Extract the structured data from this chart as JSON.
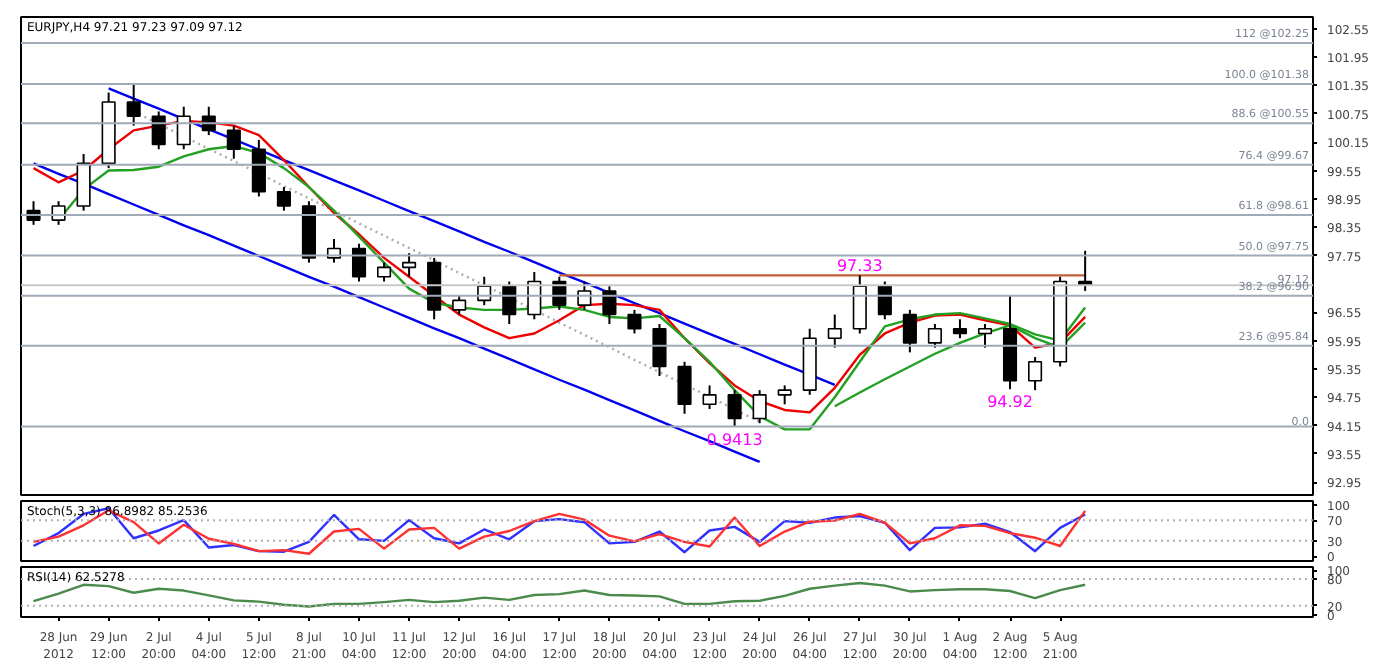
{
  "chart_data": [
    {
      "type": "candlestick",
      "title": "EURJPY,H4  97.21 97.23 97.09 97.12",
      "tick_labels": "y",
      "ylim": [
        92.68,
        102.8
      ],
      "yticks": [
        102.55,
        101.95,
        101.35,
        100.75,
        100.15,
        99.55,
        98.95,
        98.35,
        97.75,
        96.55,
        95.95,
        95.35,
        94.75,
        94.15,
        93.55,
        92.95
      ],
      "categories": [
        null,
        null,
        null,
        null,
        null,
        null,
        null,
        null,
        null,
        null,
        null,
        null,
        null,
        null,
        null,
        null,
        null,
        null,
        null,
        null,
        null,
        null,
        null,
        null,
        null,
        null,
        null,
        null,
        null,
        null,
        null,
        null,
        null,
        null,
        null,
        null,
        null,
        null,
        null,
        null,
        null,
        null,
        null
      ],
      "ohlc": [
        [
          98.7,
          98.9,
          98.4,
          98.5
        ],
        [
          98.5,
          98.9,
          98.4,
          98.8
        ],
        [
          98.8,
          99.9,
          98.7,
          99.7
        ],
        [
          99.7,
          101.2,
          99.6,
          101.0
        ],
        [
          101.0,
          101.4,
          100.5,
          100.7
        ],
        [
          100.7,
          100.8,
          100.0,
          100.1
        ],
        [
          100.1,
          100.9,
          100.0,
          100.7
        ],
        [
          100.7,
          100.9,
          100.3,
          100.4
        ],
        [
          100.4,
          100.5,
          99.8,
          100.0
        ],
        [
          100.0,
          100.2,
          99.0,
          99.1
        ],
        [
          99.1,
          99.2,
          98.7,
          98.8
        ],
        [
          98.8,
          98.9,
          97.6,
          97.7
        ],
        [
          97.7,
          98.1,
          97.6,
          97.9
        ],
        [
          97.9,
          98.0,
          97.2,
          97.3
        ],
        [
          97.3,
          97.6,
          97.2,
          97.5
        ],
        [
          97.5,
          97.8,
          97.3,
          97.6
        ],
        [
          97.6,
          97.7,
          96.4,
          96.6
        ],
        [
          96.6,
          96.9,
          96.5,
          96.8
        ],
        [
          96.8,
          97.3,
          96.7,
          97.1
        ],
        [
          97.1,
          97.2,
          96.3,
          96.5
        ],
        [
          96.5,
          97.4,
          96.4,
          97.2
        ],
        [
          97.2,
          97.3,
          96.6,
          96.7
        ],
        [
          96.7,
          97.2,
          96.6,
          97.0
        ],
        [
          97.0,
          97.1,
          96.3,
          96.5
        ],
        [
          96.5,
          96.6,
          96.1,
          96.2
        ],
        [
          96.2,
          96.3,
          95.2,
          95.4
        ],
        [
          95.4,
          95.5,
          94.4,
          94.6
        ],
        [
          94.6,
          95.0,
          94.5,
          94.8
        ],
        [
          94.8,
          94.9,
          94.13,
          94.3
        ],
        [
          94.3,
          94.9,
          94.2,
          94.8
        ],
        [
          94.8,
          95.0,
          94.6,
          94.9
        ],
        [
          94.9,
          96.2,
          94.8,
          96.0
        ],
        [
          96.0,
          96.5,
          95.8,
          96.2
        ],
        [
          96.2,
          97.33,
          96.1,
          97.1
        ],
        [
          97.1,
          97.2,
          96.4,
          96.5
        ],
        [
          96.5,
          96.6,
          95.7,
          95.9
        ],
        [
          95.9,
          96.3,
          95.8,
          96.2
        ],
        [
          96.2,
          96.4,
          96.0,
          96.1
        ],
        [
          96.1,
          96.3,
          95.8,
          96.2
        ],
        [
          96.2,
          96.9,
          94.92,
          95.1
        ],
        [
          95.1,
          95.6,
          94.9,
          95.5
        ],
        [
          95.5,
          97.3,
          95.4,
          97.2
        ],
        [
          97.2,
          97.85,
          97.0,
          97.12
        ]
      ],
      "series": [
        {
          "type": "line",
          "color": "#0000ee",
          "values": [
            null,
            null,
            null,
            101.29,
            101.07,
            100.86,
            100.64,
            100.42,
            100.21,
            99.99,
            99.77,
            99.56,
            99.34,
            99.13,
            98.91,
            98.69,
            98.48,
            98.26,
            98.04,
            97.83,
            97.61,
            97.39,
            97.18,
            96.96,
            96.74,
            96.53,
            96.31,
            96.09,
            95.88,
            95.66,
            95.44,
            95.23,
            95.01,
            null,
            null,
            null,
            null,
            null,
            null,
            null,
            null,
            null,
            null
          ]
        },
        {
          "type": "line",
          "color": "#0000ee",
          "values": [
            99.7,
            99.48,
            99.27,
            99.05,
            98.83,
            98.61,
            98.39,
            98.18,
            97.96,
            97.74,
            97.52,
            97.3,
            97.09,
            96.87,
            96.65,
            96.43,
            96.21,
            96.0,
            95.78,
            95.56,
            95.34,
            95.12,
            94.91,
            94.69,
            94.47,
            94.25,
            94.03,
            93.82,
            93.6,
            93.38,
            null,
            null,
            null,
            null,
            null,
            null,
            null,
            null,
            null,
            null,
            null,
            null,
            null
          ]
        },
        {
          "type": "line",
          "color": "#aaaaaa",
          "line_style": "dotted",
          "values": [
            null,
            null,
            null,
            null,
            100.8,
            100.54,
            100.27,
            100.01,
            99.75,
            99.49,
            99.22,
            98.96,
            98.7,
            98.43,
            98.17,
            97.91,
            97.65,
            97.38,
            97.12,
            96.86,
            96.6,
            96.33,
            96.07,
            95.81,
            95.54,
            95.28,
            95.02,
            94.76,
            94.49,
            94.23,
            null,
            null,
            null,
            null,
            null,
            null,
            null,
            null,
            null,
            null,
            null,
            null,
            null
          ]
        },
        {
          "type": "line",
          "color": "#c0603a",
          "values": [
            null,
            null,
            null,
            null,
            null,
            null,
            null,
            null,
            null,
            null,
            null,
            null,
            null,
            null,
            null,
            null,
            null,
            null,
            null,
            null,
            null,
            97.33,
            97.33,
            97.33,
            97.33,
            97.33,
            97.33,
            97.33,
            97.33,
            97.33,
            97.33,
            97.33,
            97.33,
            97.33,
            97.33,
            97.33,
            97.33,
            97.33,
            97.33,
            97.33,
            97.33,
            97.33,
            97.33
          ]
        },
        {
          "type": "line",
          "color": "#ee0000",
          "values": [
            99.6,
            99.3,
            99.55,
            100.0,
            100.4,
            100.5,
            100.6,
            100.57,
            100.5,
            100.3,
            99.77,
            99.2,
            98.65,
            98.2,
            97.7,
            97.3,
            96.9,
            96.5,
            96.23,
            96.0,
            96.1,
            96.38,
            96.7,
            96.73,
            96.7,
            96.6,
            96.0,
            95.47,
            95.0,
            94.67,
            94.48,
            94.43,
            94.95,
            95.65,
            96.1,
            96.33,
            96.48,
            96.5,
            96.38,
            96.27,
            95.8,
            95.9,
            96.45
          ]
        },
        {
          "type": "line",
          "color": "#22a022",
          "values": [
            null,
            98.5,
            99.15,
            99.55,
            99.56,
            99.63,
            99.85,
            100.0,
            100.07,
            99.92,
            99.6,
            99.2,
            98.7,
            98.15,
            97.6,
            97.05,
            96.75,
            96.65,
            96.6,
            96.6,
            96.63,
            96.67,
            96.6,
            96.45,
            96.42,
            96.47,
            96.0,
            95.5,
            94.9,
            94.35,
            94.07,
            94.07,
            94.75,
            95.5,
            96.25,
            96.4,
            96.5,
            96.53,
            96.42,
            96.3,
            96.08,
            95.95,
            96.65
          ]
        },
        {
          "type": "line",
          "color": "#22a022",
          "values": [
            null,
            null,
            null,
            null,
            null,
            null,
            null,
            null,
            null,
            null,
            null,
            null,
            null,
            null,
            null,
            null,
            null,
            null,
            null,
            null,
            null,
            null,
            null,
            null,
            null,
            null,
            null,
            null,
            null,
            null,
            null,
            null,
            94.56,
            94.85,
            95.13,
            95.4,
            95.67,
            95.9,
            96.1,
            96.27,
            96.0,
            95.8,
            96.33
          ]
        }
      ],
      "ref_lines": [
        {
          "axis": "y",
          "value": 102.25,
          "label": "112 @102.25",
          "color": "#a0aab8"
        },
        {
          "axis": "y",
          "value": 101.38,
          "label": "100.0 @101.38",
          "color": "#a0aab8"
        },
        {
          "axis": "y",
          "value": 100.55,
          "label": "88.6 @100.55",
          "color": "#a0aab8"
        },
        {
          "axis": "y",
          "value": 99.67,
          "label": "76.4 @99.67",
          "color": "#a0aab8"
        },
        {
          "axis": "y",
          "value": 98.61,
          "label": "61.8 @98.61",
          "color": "#a0aab8"
        },
        {
          "axis": "y",
          "value": 97.75,
          "label": "50.0 @97.75",
          "color": "#a0aab8"
        },
        {
          "axis": "y",
          "value": 97.12,
          "label": "97.12",
          "color": "#c8c8c8"
        },
        {
          "axis": "y",
          "value": 96.9,
          "label": "38.2 @96.90",
          "color": "#a0aab8"
        },
        {
          "axis": "y",
          "value": 95.84,
          "label": "23.6 @95.84",
          "color": "#a0aab8"
        },
        {
          "axis": "y",
          "value": 94.13,
          "color": "#a0aab8"
        }
      ],
      "annotations": [
        {
          "text": "97.33",
          "y": 97.33
        },
        {
          "text": "94.92",
          "y": 94.92
        },
        {
          "text": "0.9413",
          "y": 94.13
        },
        "0.0"
      ]
    },
    {
      "type": "line",
      "title": "Stoch(5,3,3) 86.8982 85.2536",
      "tick_labels": "y",
      "ylim": [
        -9,
        107
      ],
      "yticks": [
        100,
        70,
        30,
        0
      ],
      "categories": [
        null,
        null,
        null,
        null,
        null,
        null,
        null,
        null,
        null,
        null,
        null,
        null,
        null,
        null,
        null,
        null,
        null,
        null,
        null,
        null,
        null,
        null,
        null,
        null,
        null,
        null,
        null,
        null,
        null,
        null,
        null,
        null,
        null,
        null,
        null,
        null,
        null,
        null,
        null,
        null,
        null,
        null,
        null
      ],
      "ref_lines": [
        {
          "axis": "y",
          "value": 70,
          "color": "#b0b0b0",
          "line_style": "dotted"
        },
        {
          "axis": "y",
          "value": 30,
          "color": "#b0b0b0",
          "line_style": "dotted"
        }
      ],
      "series": [
        {
          "color": "#3030ff",
          "values": [
            20,
            45,
            82,
            93,
            35,
            50,
            70,
            17,
            22,
            10,
            9,
            28,
            80,
            33,
            30,
            70,
            35,
            25,
            52,
            33,
            68,
            72,
            66,
            25,
            28,
            48,
            8,
            50,
            57,
            28,
            68,
            65,
            75,
            78,
            65,
            12,
            55,
            56,
            63,
            47,
            10,
            55,
            81
          ]
        },
        {
          "color": "#ff3030",
          "values": [
            28,
            38,
            60,
            89,
            66,
            25,
            61,
            34,
            24,
            10,
            12,
            5,
            48,
            53,
            15,
            52,
            55,
            15,
            38,
            49,
            68,
            82,
            71,
            40,
            29,
            43,
            28,
            19,
            75,
            20,
            48,
            67,
            69,
            82,
            65,
            25,
            35,
            60,
            59,
            45,
            36,
            20,
            88
          ]
        }
      ]
    },
    {
      "type": "line",
      "title": "RSI(14) 62.5278",
      "ylim": [
        -5.5,
        107
      ],
      "yticks": [
        100,
        80,
        20,
        0
      ],
      "categories": [
        null,
        "28 Jun 2012",
        null,
        "29 Jun 12:00",
        null,
        "2 Jul 20:00",
        null,
        "4 Jul 04:00",
        null,
        "5 Jul 12:00",
        null,
        "8 Jul 21:00",
        null,
        "10 Jul 04:00",
        null,
        "11 Jul 12:00",
        null,
        "12 Jul 20:00",
        null,
        "16 Jul 04:00",
        null,
        "17 Jul 12:00",
        null,
        "18 Jul 20:00",
        null,
        "20 Jul 04:00",
        null,
        "23 Jul 12:00",
        null,
        "24 Jul 20:00",
        null,
        "26 Jul 04:00",
        null,
        "27 Jul 12:00",
        null,
        "30 Jul 20:00",
        null,
        "1 Aug 04:00",
        null,
        "2 Aug 12:00",
        null,
        "5 Aug 21:00",
        null
      ],
      "ref_lines": [
        {
          "axis": "y",
          "value": 80,
          "color": "#b0b0b0",
          "line_style": "dotted"
        },
        {
          "axis": "y",
          "value": 20,
          "color": "#b0b0b0",
          "line_style": "dotted"
        }
      ],
      "series": [
        {
          "color": "#4a8a4a",
          "values": [
            30,
            47,
            67,
            64,
            49,
            58,
            54,
            43,
            32,
            29,
            22,
            18,
            24,
            24,
            28,
            33,
            28,
            31,
            38,
            33,
            44,
            46,
            54,
            44,
            43,
            41,
            24,
            24,
            30,
            31,
            42,
            58,
            65,
            71,
            65,
            52,
            55,
            57,
            57,
            53,
            37,
            55,
            67
          ]
        }
      ]
    }
  ]
}
